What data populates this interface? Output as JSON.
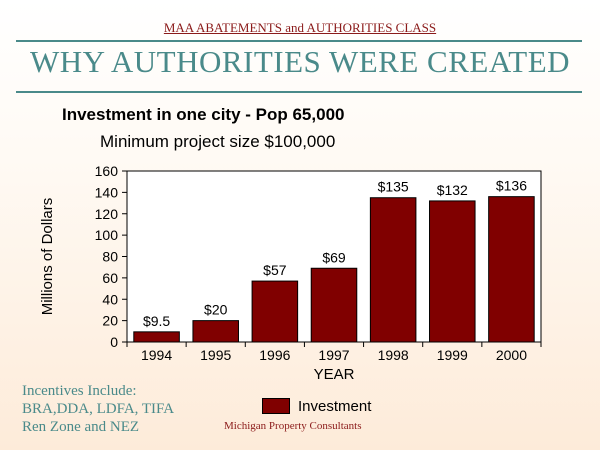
{
  "header": {
    "course": "MAA ABATEMENTS and AUTHORITIES CLASS",
    "title": "WHY AUTHORITIES WERE CREATED"
  },
  "heading": "Investment in one city - Pop 65,000",
  "subheading": "Minimum project size $100,000",
  "chart_data": {
    "type": "bar",
    "categories": [
      "1994",
      "1995",
      "1996",
      "1997",
      "1998",
      "1999",
      "2000"
    ],
    "series": [
      {
        "name": "Investment",
        "values": [
          9.5,
          20,
          57,
          69,
          135,
          132,
          136
        ],
        "color": "#800000"
      }
    ],
    "data_labels": [
      "$9.5",
      "$20",
      "$57",
      "$69",
      "$135",
      "$132",
      "$136"
    ],
    "xlabel": "YEAR",
    "ylabel": "Millions of Dollars",
    "ylim": [
      0,
      160
    ],
    "yticks": [
      "0",
      "20",
      "40",
      "60",
      "80",
      "100",
      "120",
      "140",
      "160"
    ],
    "grid": false,
    "legend": "bottom"
  },
  "incentives": [
    "Incentives Include:",
    "BRA,DDA, LDFA, TIFA",
    "Ren Zone and NEZ"
  ],
  "footer": "Michigan Property Consultants",
  "colors": {
    "bar": "#800000",
    "title": "#4a8a8a",
    "accent_red": "#8b1a1a"
  }
}
